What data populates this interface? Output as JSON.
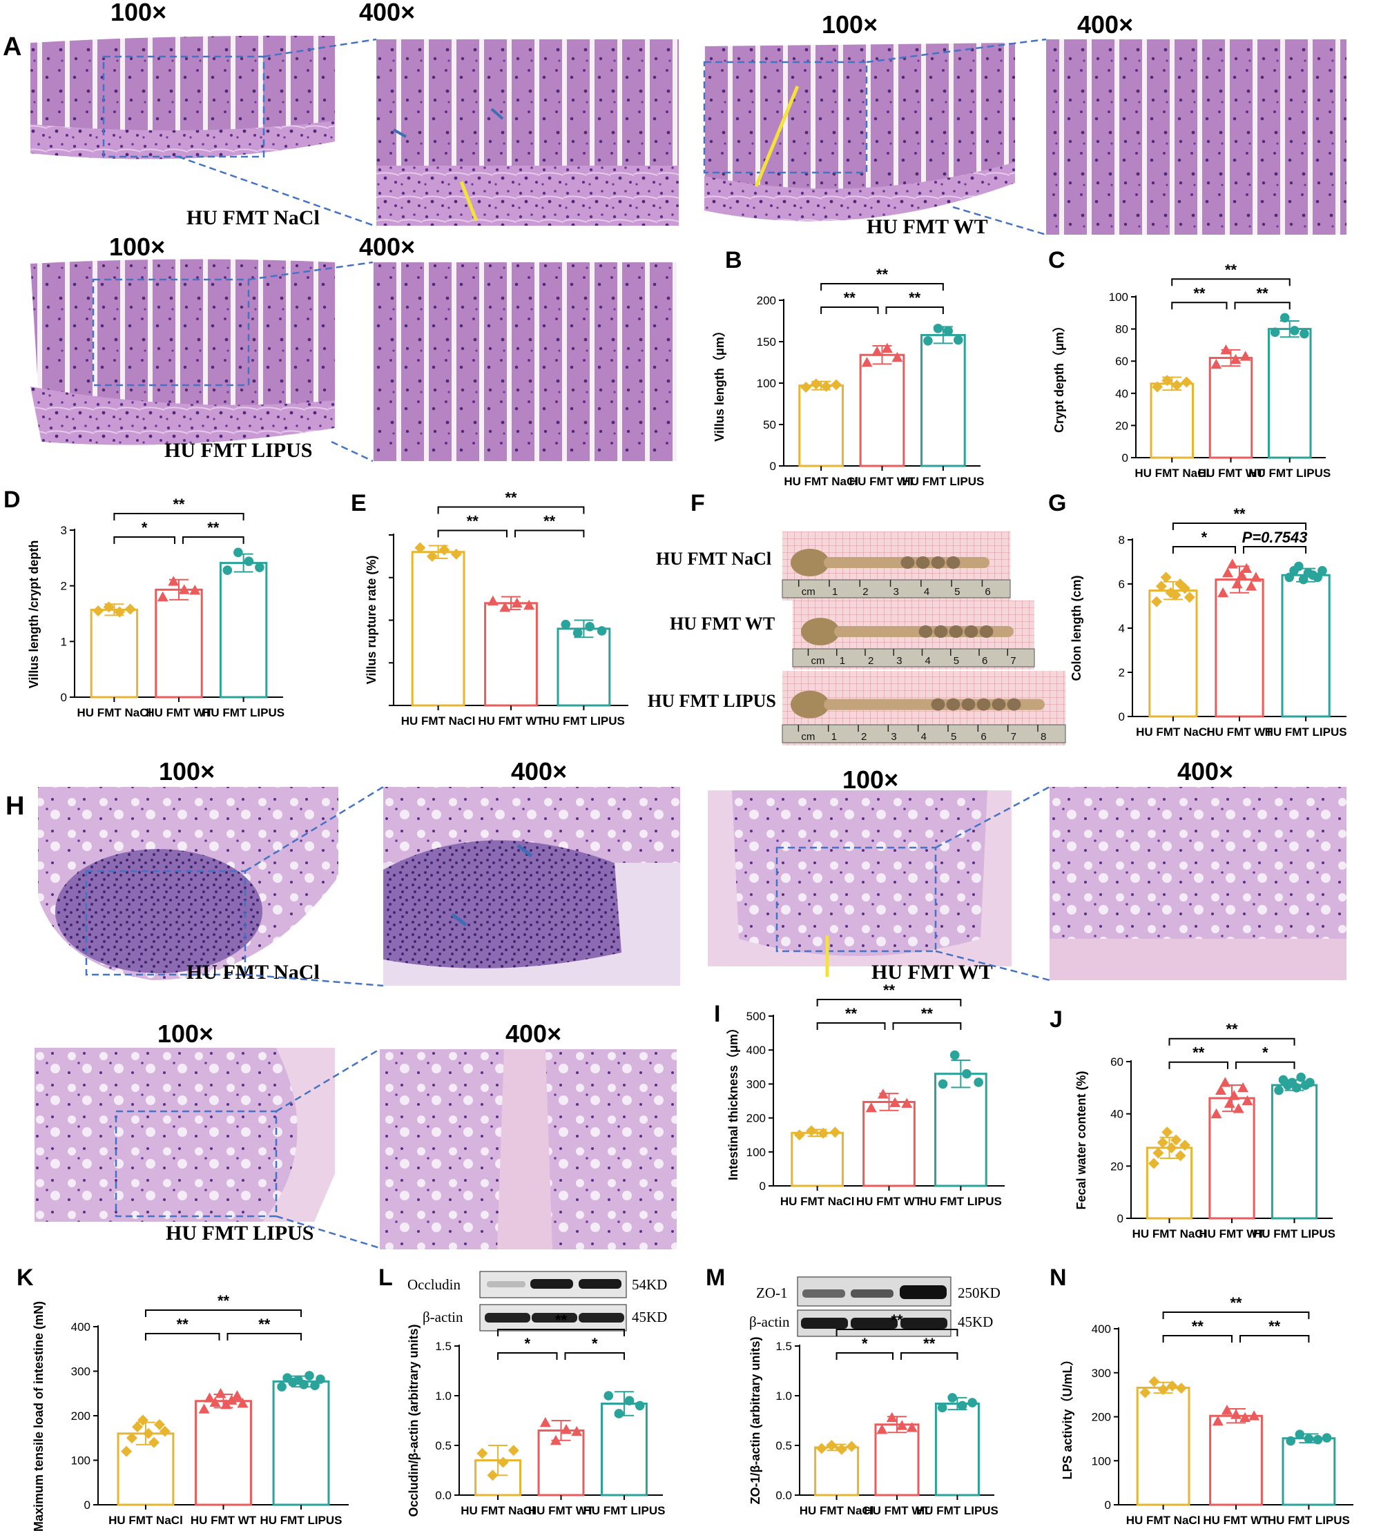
{
  "colors": {
    "naCl": "#E8B531",
    "wt": "#EC5B5B",
    "lipus": "#2AA39A",
    "he_purple": "#B77CC4",
    "he_dark": "#6A3E8E",
    "box": "#4472C4",
    "guide": "#F2E23A"
  },
  "micro": {
    "mag_low": "100×",
    "mag_high": "400×",
    "A_label": "A",
    "H_label": "H",
    "groups_A": [
      "HU FMT NaCl",
      "HU FMT WT",
      "HU FMT LIPUS"
    ],
    "groups_H": [
      "HU FMT NaCl",
      "HU FMT WT",
      "HU FMT LIPUS"
    ]
  },
  "F": {
    "label": "F",
    "rows": [
      {
        "name": "HU FMT NaCl",
        "ruler": [
          "cm",
          "1",
          "2",
          "3",
          "4",
          "5",
          "6"
        ]
      },
      {
        "name": "HU FMT WT",
        "ruler": [
          "cm",
          "1",
          "2",
          "3",
          "4",
          "5",
          "6",
          "7"
        ]
      },
      {
        "name": "HU FMT LIPUS",
        "ruler": [
          "cm",
          "1",
          "2",
          "3",
          "4",
          "5",
          "6",
          "7",
          "8"
        ]
      }
    ]
  },
  "blots": {
    "L": {
      "top": "Occludin",
      "top_kd": "54KD",
      "bottom": "β-actin",
      "bottom_kd": "45KD"
    },
    "M": {
      "top": "ZO-1",
      "top_kd": "250KD",
      "bottom": "β-actin",
      "bottom_kd": "45KD"
    }
  },
  "chart_data": [
    {
      "panel": "B",
      "type": "bar",
      "categories": [
        "HU FMT NaCl",
        "HU FMT WT",
        "HU FMT LIPUS"
      ],
      "values": [
        97,
        134,
        158
      ],
      "sd": [
        5,
        11,
        10
      ],
      "points": [
        [
          95,
          99,
          96,
          98
        ],
        [
          125,
          138,
          142,
          131
        ],
        [
          151,
          166,
          163,
          152
        ]
      ],
      "markers": [
        "diamond",
        "triangle",
        "circle"
      ],
      "ylabel": "Villus length（μm）",
      "ylim": [
        0,
        200
      ],
      "yticks": [
        0,
        50,
        100,
        150,
        200
      ],
      "sig": [
        {
          "from": 0,
          "to": 1,
          "text": "**",
          "level": 1
        },
        {
          "from": 1,
          "to": 2,
          "text": "**",
          "level": 1
        },
        {
          "from": 0,
          "to": 2,
          "text": "**",
          "level": 2
        }
      ]
    },
    {
      "panel": "C",
      "type": "bar",
      "categories": [
        "HU FMT NaCl",
        "HU FMT WT",
        "HU FMT LIPUS"
      ],
      "values": [
        46,
        62,
        80
      ],
      "sd": [
        4,
        5,
        5
      ],
      "points": [
        [
          44,
          48,
          45,
          47
        ],
        [
          58,
          67,
          61,
          63
        ],
        [
          78,
          87,
          79,
          77
        ]
      ],
      "markers": [
        "diamond",
        "triangle",
        "circle"
      ],
      "ylabel": "Crypt depth（μm）",
      "ylim": [
        0,
        100
      ],
      "yticks": [
        0,
        20,
        40,
        60,
        80,
        100
      ],
      "sig": [
        {
          "from": 0,
          "to": 1,
          "text": "**",
          "level": 1
        },
        {
          "from": 1,
          "to": 2,
          "text": "**",
          "level": 1
        },
        {
          "from": 0,
          "to": 2,
          "text": "**",
          "level": 2
        }
      ]
    },
    {
      "panel": "D",
      "type": "bar",
      "categories": [
        "HU FMT NaCl",
        "HU FMT WT",
        "HU FMT LIPUS"
      ],
      "values": [
        1.57,
        1.93,
        2.41
      ],
      "sd": [
        0.1,
        0.18,
        0.16
      ],
      "points": [
        [
          1.55,
          1.62,
          1.53,
          1.58
        ],
        [
          1.8,
          2.08,
          1.93,
          1.92
        ],
        [
          2.28,
          2.6,
          2.44,
          2.33
        ]
      ],
      "markers": [
        "diamond",
        "triangle",
        "circle"
      ],
      "ylabel": "Villus  length /crypt depth",
      "ylim": [
        0,
        3
      ],
      "yticks": [
        0,
        1,
        2,
        3
      ],
      "sig": [
        {
          "from": 0,
          "to": 1,
          "text": "*",
          "level": 1
        },
        {
          "from": 1,
          "to": 2,
          "text": "**",
          "level": 1
        },
        {
          "from": 0,
          "to": 2,
          "text": "**",
          "level": 2
        }
      ]
    },
    {
      "panel": "E",
      "type": "bar",
      "categories": [
        "HU FMT NaCl",
        "HU FMT WT",
        "HU FMT LIPUS"
      ],
      "values": [
        36,
        24,
        18
      ],
      "sd": [
        1.5,
        1.5,
        2
      ],
      "points": [
        [
          37,
          35,
          36.5,
          35.5
        ],
        [
          24.5,
          23,
          24,
          23.5
        ],
        [
          19,
          17,
          18.5,
          17.5
        ]
      ],
      "markers": [
        "diamond",
        "triangle",
        "circle"
      ],
      "ylabel": "Villus rupture rate (%)",
      "ylim": [
        0,
        40
      ],
      "yticks": [
        0,
        10,
        20,
        30,
        40
      ],
      "hide_tick_labels": true,
      "sig": [
        {
          "from": 0,
          "to": 1,
          "text": "**",
          "level": 1
        },
        {
          "from": 1,
          "to": 2,
          "text": "**",
          "level": 1
        },
        {
          "from": 0,
          "to": 2,
          "text": "**",
          "level": 2
        }
      ]
    },
    {
      "panel": "G",
      "type": "bar",
      "categories": [
        "HU FMT NaCl",
        "HU FMT WT",
        "HU FMT LIPUS"
      ],
      "values": [
        5.7,
        6.2,
        6.4
      ],
      "sd": [
        0.4,
        0.6,
        0.3
      ],
      "points": [
        [
          5.2,
          5.9,
          6.3,
          5.6,
          5.5,
          6.0,
          5.8,
          5.4
        ],
        [
          5.6,
          6.5,
          6.9,
          6.0,
          6.4,
          6.7,
          5.9,
          6.3
        ],
        [
          6.3,
          6.6,
          6.8,
          6.2,
          6.5,
          6.4,
          6.3,
          6.6
        ]
      ],
      "markers": [
        "diamond",
        "triangle",
        "circle"
      ],
      "ylabel": "Colon length (cm)",
      "ylim": [
        0,
        8
      ],
      "yticks": [
        0,
        2,
        4,
        6,
        8
      ],
      "sig": [
        {
          "from": 0,
          "to": 1,
          "text": "*",
          "level": 1
        },
        {
          "from": 1,
          "to": 2,
          "text": "P=0.7543",
          "level": 1
        },
        {
          "from": 0,
          "to": 2,
          "text": "**",
          "level": 2
        }
      ]
    },
    {
      "panel": "I",
      "type": "bar",
      "categories": [
        "HU FMT NaCl",
        "HU FMT WT",
        "HU FMT LIPUS"
      ],
      "values": [
        156,
        247,
        330
      ],
      "sd": [
        10,
        25,
        40
      ],
      "points": [
        [
          150,
          162,
          155,
          158
        ],
        [
          230,
          270,
          245,
          243
        ],
        [
          300,
          385,
          330,
          305
        ]
      ],
      "markers": [
        "diamond",
        "triangle",
        "circle"
      ],
      "ylabel": "Intestinal thickness（μm）",
      "ylim": [
        0,
        500
      ],
      "yticks": [
        0,
        100,
        200,
        300,
        400,
        500
      ],
      "sig": [
        {
          "from": 0,
          "to": 1,
          "text": "**",
          "level": 1
        },
        {
          "from": 1,
          "to": 2,
          "text": "**",
          "level": 1
        },
        {
          "from": 0,
          "to": 2,
          "text": "**",
          "level": 2
        }
      ]
    },
    {
      "panel": "J",
      "type": "bar",
      "categories": [
        "HU FMT NaCl",
        "HU FMT WT",
        "HU FMT LIPUS"
      ],
      "values": [
        27,
        46,
        51
      ],
      "sd": [
        4,
        5,
        2
      ],
      "points": [
        [
          21,
          25,
          29,
          33,
          27,
          30,
          24,
          28
        ],
        [
          40,
          49,
          52,
          44,
          47,
          42,
          50,
          45
        ],
        [
          49,
          53,
          51,
          52,
          50,
          54,
          51,
          52
        ]
      ],
      "markers": [
        "diamond",
        "triangle",
        "circle"
      ],
      "ylabel": "Fecal water content (%)",
      "ylim": [
        0,
        60
      ],
      "yticks": [
        0,
        20,
        40,
        60
      ],
      "sig": [
        {
          "from": 0,
          "to": 1,
          "text": "**",
          "level": 1
        },
        {
          "from": 1,
          "to": 2,
          "text": "*",
          "level": 1
        },
        {
          "from": 0,
          "to": 2,
          "text": "**",
          "level": 2
        }
      ]
    },
    {
      "panel": "K",
      "type": "bar",
      "categories": [
        "HU FMT NaCl",
        "HU FMT WT",
        "HU FMT LIPUS"
      ],
      "values": [
        160,
        233,
        277
      ],
      "sd": [
        25,
        15,
        12
      ],
      "points": [
        [
          120,
          150,
          175,
          190,
          160,
          140,
          180,
          165
        ],
        [
          215,
          240,
          230,
          250,
          225,
          235,
          245,
          228
        ],
        [
          265,
          285,
          275,
          280,
          270,
          290,
          268,
          282
        ]
      ],
      "markers": [
        "diamond",
        "triangle",
        "circle"
      ],
      "ylabel": "Maximum tensile load of intestine (mN)",
      "ylim": [
        0,
        400
      ],
      "yticks": [
        0,
        100,
        200,
        300,
        400
      ],
      "sig": [
        {
          "from": 0,
          "to": 1,
          "text": "**",
          "level": 1
        },
        {
          "from": 1,
          "to": 2,
          "text": "**",
          "level": 1
        },
        {
          "from": 0,
          "to": 2,
          "text": "**",
          "level": 2
        }
      ]
    },
    {
      "panel": "L",
      "type": "bar",
      "categories": [
        "HU FMT NaCl",
        "HU FMT WT",
        "HU FMT LIPUS"
      ],
      "values": [
        0.35,
        0.65,
        0.92
      ],
      "sd": [
        0.15,
        0.1,
        0.12
      ],
      "points": [
        [
          0.42,
          0.2,
          0.33,
          0.45
        ],
        [
          0.73,
          0.55,
          0.66,
          0.64
        ],
        [
          1.0,
          0.82,
          0.95,
          0.9
        ]
      ],
      "markers": [
        "diamond",
        "triangle",
        "circle"
      ],
      "ylabel": "Occludin/β-actin (arbitrary units)",
      "ylim": [
        0,
        1.5
      ],
      "yticks": [
        0.0,
        0.5,
        1.0,
        1.5
      ],
      "sig": [
        {
          "from": 0,
          "to": 1,
          "text": "*",
          "level": 1
        },
        {
          "from": 1,
          "to": 2,
          "text": "*",
          "level": 1
        },
        {
          "from": 0,
          "to": 2,
          "text": "**",
          "level": 2
        }
      ]
    },
    {
      "panel": "M",
      "type": "bar",
      "categories": [
        "HU FMT NaCl",
        "HU FMT WT",
        "HU FMT LIPUS"
      ],
      "values": [
        0.48,
        0.71,
        0.92
      ],
      "sd": [
        0.03,
        0.08,
        0.06
      ],
      "points": [
        [
          0.47,
          0.5,
          0.46,
          0.49
        ],
        [
          0.66,
          0.78,
          0.7,
          0.68
        ],
        [
          0.88,
          0.98,
          0.9,
          0.93
        ]
      ],
      "markers": [
        "diamond",
        "triangle",
        "circle"
      ],
      "ylabel": "ZO-1/β-actin (arbitrary units)",
      "ylim": [
        0,
        1.5
      ],
      "yticks": [
        0.0,
        0.5,
        1.0,
        1.5
      ],
      "sig": [
        {
          "from": 0,
          "to": 1,
          "text": "*",
          "level": 1
        },
        {
          "from": 1,
          "to": 2,
          "text": "**",
          "level": 1
        },
        {
          "from": 0,
          "to": 2,
          "text": "**",
          "level": 2
        }
      ]
    },
    {
      "panel": "N",
      "type": "bar",
      "categories": [
        "HU FMT NaCl",
        "HU FMT WT",
        "HU FMT LIPUS"
      ],
      "values": [
        266,
        202,
        151
      ],
      "sd": [
        12,
        16,
        10
      ],
      "points": [
        [
          255,
          280,
          262,
          270,
          265
        ],
        [
          190,
          215,
          205,
          198,
          202
        ],
        [
          145,
          160,
          150,
          148,
          152
        ]
      ],
      "markers": [
        "diamond",
        "triangle",
        "circle"
      ],
      "ylabel": "LPS activity（U/mL）",
      "ylim": [
        0,
        400
      ],
      "yticks": [
        0,
        100,
        200,
        300,
        400
      ],
      "sig": [
        {
          "from": 0,
          "to": 1,
          "text": "**",
          "level": 1
        },
        {
          "from": 1,
          "to": 2,
          "text": "**",
          "level": 1
        },
        {
          "from": 0,
          "to": 2,
          "text": "**",
          "level": 2
        }
      ]
    }
  ]
}
